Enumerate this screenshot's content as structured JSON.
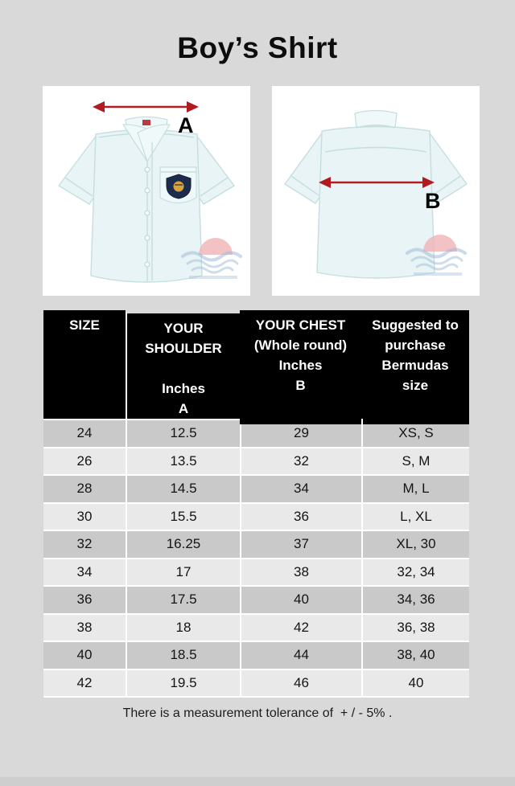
{
  "page": {
    "title": "Boy’s Shirt",
    "tolerance_note": "There is a measurement tolerance of  + / - 5% ."
  },
  "figures": {
    "front": {
      "label": "A",
      "description": "shirt front with shoulder-width arrow"
    },
    "back": {
      "label": "B",
      "description": "shirt back with chest-width arrow"
    }
  },
  "icons": {
    "front_arrow": "double-headed-horizontal-arrow",
    "back_arrow": "double-headed-horizontal-arrow",
    "pocket_badge": "navy-shield-badge",
    "watermark": "sun-and-waves-watermark"
  },
  "theme": {
    "page_bg": "#d9d9d9",
    "panel_bg": "#ffffff",
    "arrow_red": "#b11a21",
    "header_bg": "#000000",
    "header_text": "#ffffff",
    "row_dark": "#c9c9c9",
    "row_light": "#e9e9e9"
  },
  "table": {
    "header": {
      "size": "SIZE",
      "shoulder": "YOUR\nSHOULDER\n\nInches\nA",
      "chest": "YOUR CHEST\n(Whole round)\nInches\nB",
      "suggested": "Suggested to\npurchase\nBermudas\nsize"
    },
    "rows": [
      {
        "size": "24",
        "shoulder": "12.5",
        "chest": "29",
        "bermudas": "XS, S"
      },
      {
        "size": "26",
        "shoulder": "13.5",
        "chest": "32",
        "bermudas": "S, M"
      },
      {
        "size": "28",
        "shoulder": "14.5",
        "chest": "34",
        "bermudas": "M, L"
      },
      {
        "size": "30",
        "shoulder": "15.5",
        "chest": "36",
        "bermudas": "L, XL"
      },
      {
        "size": "32",
        "shoulder": "16.25",
        "chest": "37",
        "bermudas": "XL, 30"
      },
      {
        "size": "34",
        "shoulder": "17",
        "chest": "38",
        "bermudas": "32, 34"
      },
      {
        "size": "36",
        "shoulder": "17.5",
        "chest": "40",
        "bermudas": "34, 36"
      },
      {
        "size": "38",
        "shoulder": "18",
        "chest": "42",
        "bermudas": "36, 38"
      },
      {
        "size": "40",
        "shoulder": "18.5",
        "chest": "44",
        "bermudas": "38, 40"
      },
      {
        "size": "42",
        "shoulder": "19.5",
        "chest": "46",
        "bermudas": "40"
      }
    ]
  }
}
